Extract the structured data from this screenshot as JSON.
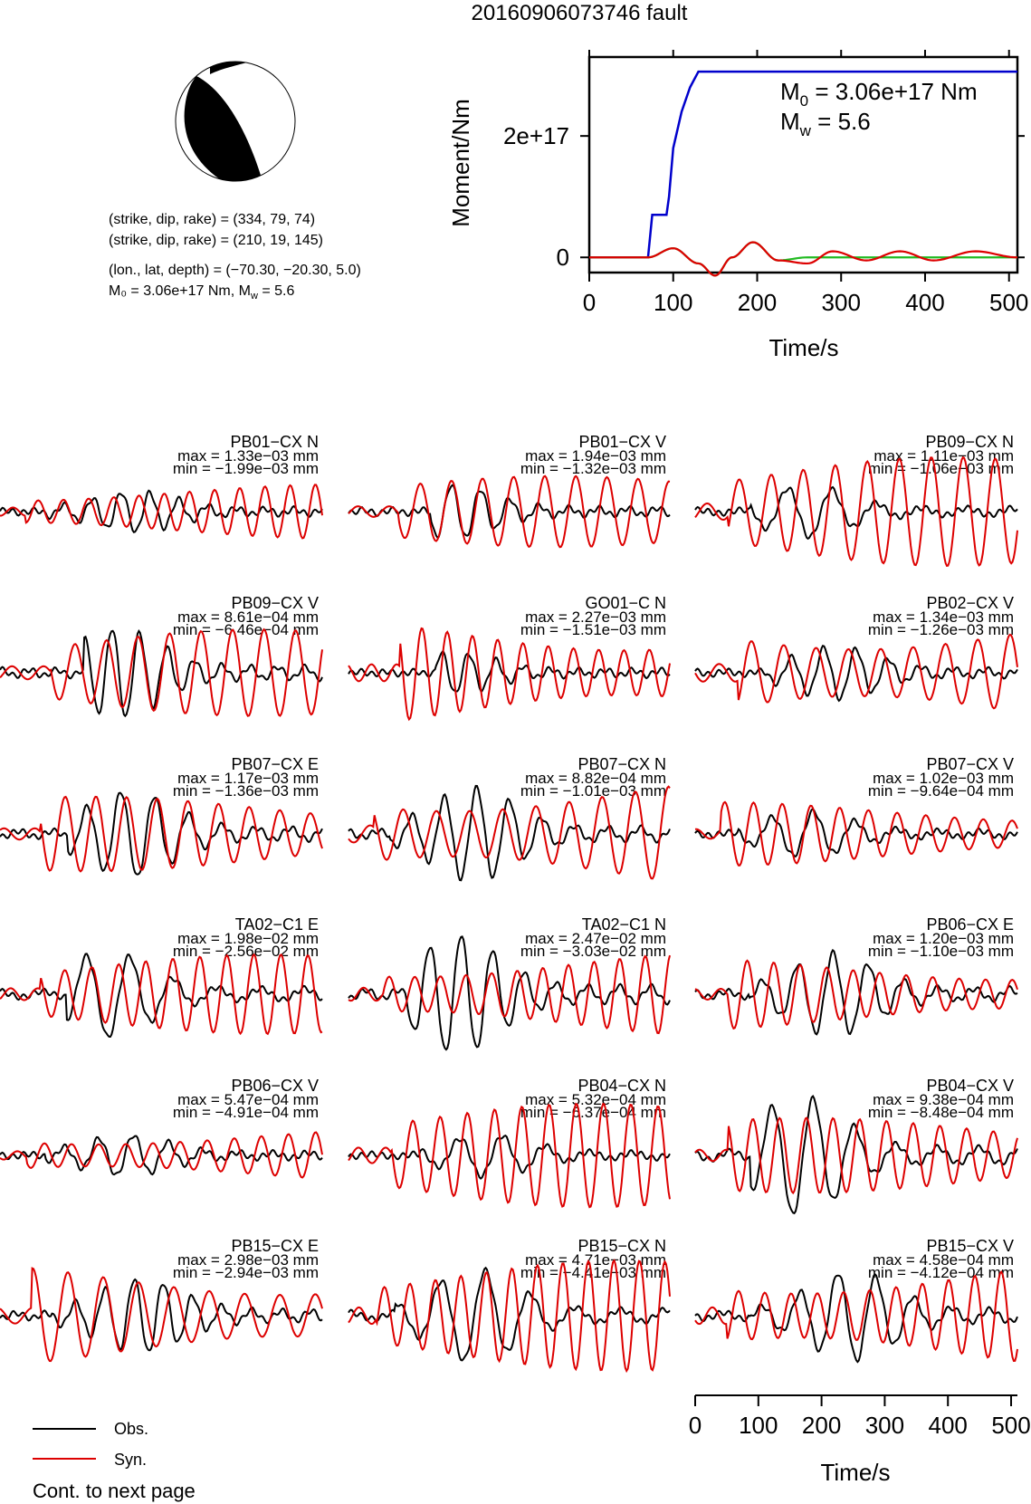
{
  "title": "20160906073746 fault",
  "mechanism": {
    "line1": "(strike, dip, rake) = (334, 79, 74)",
    "line2": "(strike, dip, rake) = (210, 19, 145)",
    "line3": "(lon., lat, depth) = (−70.30, −20.30, 5.0)",
    "line4_m0": "M₀ = 3.06e+17 Nm, M",
    "line4_mw_sub": "w",
    "line4_mw_val": " = 5.6"
  },
  "stf": {
    "ylabel": "Moment/Nm",
    "xlabel": "Time/s",
    "m0_text": "M",
    "m0_sub": "0",
    "m0_val": " = 3.06e+17 Nm",
    "mw_text": "M",
    "mw_sub": "w",
    "mw_val": " = 5.6",
    "yticks": [
      "0",
      "2e+17"
    ],
    "xticks": [
      "0",
      "100",
      "200",
      "300",
      "400",
      "500"
    ]
  },
  "chart_data": [
    {
      "type": "line",
      "title": "",
      "xlabel": "Time/s",
      "ylabel": "Moment/Nm",
      "xlim": [
        0,
        510
      ],
      "ylim": [
        -2.5e+16,
        3.3e+17
      ],
      "series": [
        {
          "color": "#0000cc",
          "x": [
            0,
            70,
            75,
            80,
            92,
            95,
            100,
            110,
            120,
            130,
            510
          ],
          "y": [
            0,
            0,
            7e+16,
            7e+16,
            7e+16,
            1e+17,
            1.8e+17,
            2.4e+17,
            2.8e+17,
            3.06e+17,
            3.06e+17
          ]
        },
        {
          "color": "#22bb22",
          "x": [
            0,
            70,
            100,
            130,
            150,
            170,
            195,
            225,
            260,
            300,
            510
          ],
          "y": [
            0,
            0,
            1.5e+16,
            -1e+16,
            -3e+16,
            0,
            2.5e+16,
            -5000000000000000.0,
            0,
            0,
            0
          ]
        },
        {
          "color": "#dd0000",
          "x": [
            0,
            70,
            100,
            130,
            150,
            170,
            195,
            225,
            260,
            290,
            330,
            370,
            410,
            460,
            510
          ],
          "y": [
            0,
            0,
            1.5e+16,
            -1e+16,
            -3e+16,
            0,
            2.5e+16,
            -5000000000000000.0,
            -1e+16,
            1e+16,
            -5000000000000000.0,
            1e+16,
            -5000000000000000.0,
            1e+16,
            0
          ]
        }
      ]
    },
    {
      "type": "line",
      "xlabel": "Time/s",
      "xlim": [
        0,
        510
      ],
      "xticks": [
        "0",
        "100",
        "200",
        "300",
        "400",
        "500"
      ],
      "legend": [
        {
          "name": "Obs.",
          "color": "#000000"
        },
        {
          "name": "Syn.",
          "color": "#dd0000"
        }
      ],
      "note": "Cont. to next page",
      "panels": [
        {
          "name": "PB01−CX N",
          "max": "max = 1.33e−03 mm",
          "min": "min = −1.99e−03 mm"
        },
        {
          "name": "PB01−CX V",
          "max": "max = 1.94e−03 mm",
          "min": "min = −1.32e−03 mm"
        },
        {
          "name": "PB09−CX N",
          "max": "max = 1.11e−03 mm",
          "min": "min = −1.06e−03 mm"
        },
        {
          "name": "PB09−CX V",
          "max": "max = 8.61e−04 mm",
          "min": "min = −6.46e−04 mm"
        },
        {
          "name": "GO01−C N",
          "max": "max = 2.27e−03 mm",
          "min": "min = −1.51e−03 mm"
        },
        {
          "name": "PB02−CX V",
          "max": "max = 1.34e−03 mm",
          "min": "min = −1.26e−03 mm"
        },
        {
          "name": "PB07−CX E",
          "max": "max = 1.17e−03 mm",
          "min": "min = −1.36e−03 mm"
        },
        {
          "name": "PB07−CX N",
          "max": "max = 8.82e−04 mm",
          "min": "min = −1.01e−03 mm"
        },
        {
          "name": "PB07−CX V",
          "max": "max = 1.02e−03 mm",
          "min": "min = −9.64e−04 mm"
        },
        {
          "name": "TA02−C1 E",
          "max": "max = 1.98e−02 mm",
          "min": "min = −2.56e−02 mm"
        },
        {
          "name": "TA02−C1 N",
          "max": "max = 2.47e−02 mm",
          "min": "min = −3.03e−02 mm"
        },
        {
          "name": "PB06−CX E",
          "max": "max = 1.20e−03 mm",
          "min": "min = −1.10e−03 mm"
        },
        {
          "name": "PB06−CX V",
          "max": "max = 5.47e−04 mm",
          "min": "min = −4.91e−04 mm"
        },
        {
          "name": "PB04−CX N",
          "max": "max = 5.32e−04 mm",
          "min": "min = −6.37e−04 mm"
        },
        {
          "name": "PB04−CX V",
          "max": "max = 9.38e−04 mm",
          "min": "min = −8.48e−04 mm"
        },
        {
          "name": "PB15−CX E",
          "max": "max = 2.98e−03 mm",
          "min": "min = −2.94e−03 mm"
        },
        {
          "name": "PB15−CX N",
          "max": "max = 4.71e−03 mm",
          "min": "min = −4.41e−03 mm"
        },
        {
          "name": "PB15−CX V",
          "max": "max = 4.58e−04 mm",
          "min": "min = −4.12e−04 mm"
        }
      ]
    }
  ]
}
